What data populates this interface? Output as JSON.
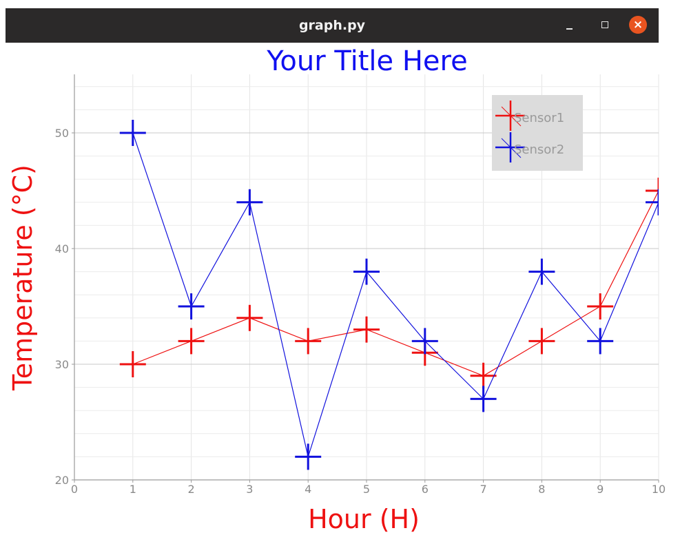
{
  "window": {
    "title": "graph.py"
  },
  "colors": {
    "title": "#1010f0",
    "axis_label": "#ee1111",
    "titlebar": "#2b2929",
    "close": "#e95420"
  },
  "icons": {
    "minimize": "minimize-icon",
    "maximize": "maximize-icon",
    "close": "close-icon"
  },
  "chart_data": {
    "type": "line",
    "title": "Your Title Here",
    "xlabel": "Hour (H)",
    "ylabel": "Temperature (°C)",
    "xlim": [
      0,
      10
    ],
    "ylim": [
      20,
      55
    ],
    "xticks": [
      "0",
      "1",
      "2",
      "3",
      "4",
      "5",
      "6",
      "7",
      "8",
      "9",
      "10"
    ],
    "yticks": [
      "20",
      "30",
      "40",
      "50"
    ],
    "grid": true,
    "legend_position": "top-right",
    "x": [
      1,
      2,
      3,
      4,
      5,
      6,
      7,
      8,
      9,
      10
    ],
    "series": [
      {
        "name": "Sensor1",
        "color": "#ee1111",
        "marker": "plus",
        "values": [
          30,
          32,
          34,
          32,
          33,
          31,
          29,
          32,
          35,
          45
        ]
      },
      {
        "name": "Sensor2",
        "color": "#1111dd",
        "marker": "plus",
        "values": [
          50,
          35,
          44,
          22,
          38,
          32,
          27,
          38,
          32,
          44
        ]
      }
    ]
  }
}
